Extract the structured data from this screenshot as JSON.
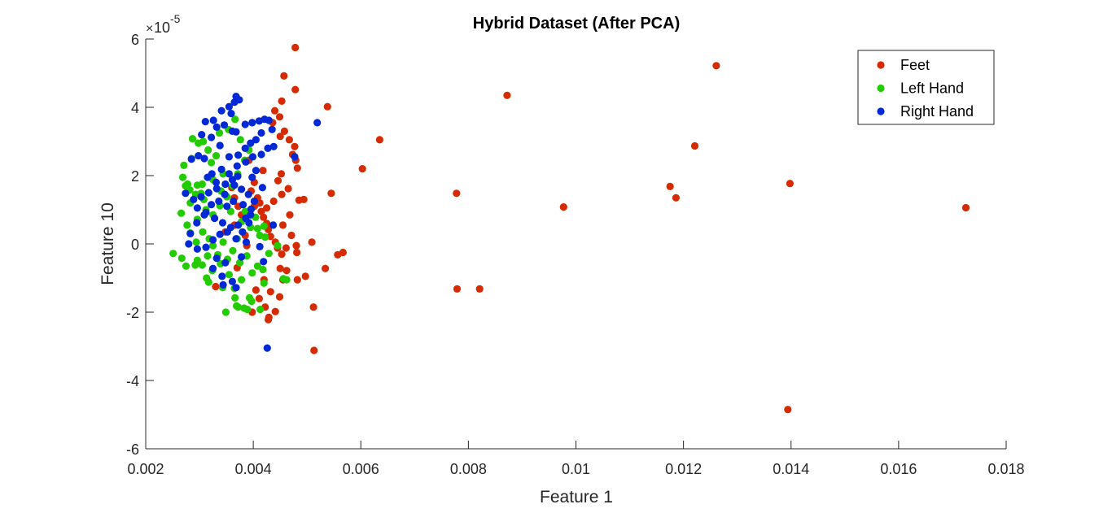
{
  "chart_data": {
    "type": "scatter",
    "title": "Hybrid Dataset (After PCA)",
    "xlabel": "Feature 1",
    "ylabel": "Feature 10",
    "y_exponent_base": "10",
    "y_exponent_power": "-5",
    "xlim": [
      0.002,
      0.018
    ],
    "ylim": [
      -6,
      6
    ],
    "x_ticks": [
      0.002,
      0.004,
      0.006,
      0.008,
      0.01,
      0.012,
      0.014,
      0.016,
      0.018
    ],
    "x_tick_labels": [
      "0.002",
      "0.004",
      "0.006",
      "0.008",
      "0.01",
      "0.012",
      "0.014",
      "0.016",
      "0.018"
    ],
    "y_ticks": [
      -6,
      -4,
      -2,
      0,
      2,
      4,
      6
    ],
    "y_tick_labels": [
      "-6",
      "-4",
      "-2",
      "0",
      "2",
      "4",
      "6"
    ],
    "grid": false,
    "legend_position": "top-right",
    "series": [
      {
        "name": "Feet",
        "color": "#d62b00",
        "points": [
          [
            0.00478,
            5.75
          ],
          [
            0.00457,
            4.92
          ],
          [
            0.00478,
            4.52
          ],
          [
            0.00538,
            4.02
          ],
          [
            0.00453,
            4.18
          ],
          [
            0.00449,
            3.72
          ],
          [
            0.0044,
            3.9
          ],
          [
            0.00458,
            3.3
          ],
          [
            0.00467,
            3.05
          ],
          [
            0.00436,
            3.55
          ],
          [
            0.0045,
            3.15
          ],
          [
            0.00477,
            2.85
          ],
          [
            0.00479,
            2.45
          ],
          [
            0.00473,
            2.62
          ],
          [
            0.00482,
            2.22
          ],
          [
            0.00452,
            2.05
          ],
          [
            0.00446,
            1.85
          ],
          [
            0.00465,
            1.62
          ],
          [
            0.00453,
            1.45
          ],
          [
            0.00438,
            1.25
          ],
          [
            0.00425,
            1.05
          ],
          [
            0.00415,
            0.95
          ],
          [
            0.00408,
            1.35
          ],
          [
            0.00396,
            1.55
          ],
          [
            0.00402,
            1.1
          ],
          [
            0.00412,
            1.2
          ],
          [
            0.00419,
            0.78
          ],
          [
            0.00425,
            0.6
          ],
          [
            0.00428,
            0.42
          ],
          [
            0.00432,
            0.22
          ],
          [
            0.00441,
            0.05
          ],
          [
            0.00445,
            -0.12
          ],
          [
            0.00453,
            -0.3
          ],
          [
            0.00461,
            -0.12
          ],
          [
            0.00471,
            0.25
          ],
          [
            0.00455,
            0.55
          ],
          [
            0.00468,
            0.85
          ],
          [
            0.00485,
            1.28
          ],
          [
            0.00494,
            1.3
          ],
          [
            0.00545,
            1.48
          ],
          [
            0.00509,
            0.05
          ],
          [
            0.0048,
            -0.05
          ],
          [
            0.00481,
            -0.25
          ],
          [
            0.00497,
            -0.95
          ],
          [
            0.00534,
            -0.72
          ],
          [
            0.00557,
            -0.32
          ],
          [
            0.00567,
            -0.25
          ],
          [
            0.0045,
            -0.72
          ],
          [
            0.00455,
            -1.05
          ],
          [
            0.00449,
            -1.55
          ],
          [
            0.00441,
            -1.98
          ],
          [
            0.00422,
            -1.85
          ],
          [
            0.00429,
            -2.15
          ],
          [
            0.00428,
            -2.22
          ],
          [
            0.00432,
            -1.4
          ],
          [
            0.00411,
            -1.6
          ],
          [
            0.00405,
            -1.35
          ],
          [
            0.00398,
            -2.0
          ],
          [
            0.0042,
            -1.05
          ],
          [
            0.00462,
            -0.78
          ],
          [
            0.00482,
            -1.05
          ],
          [
            0.00512,
            -1.85
          ],
          [
            0.00513,
            -3.12
          ],
          [
            0.00603,
            2.2
          ],
          [
            0.00635,
            3.05
          ],
          [
            0.00778,
            1.48
          ],
          [
            0.00779,
            -1.32
          ],
          [
            0.00821,
            -1.32
          ],
          [
            0.00872,
            4.35
          ],
          [
            0.00977,
            1.08
          ],
          [
            0.01175,
            1.68
          ],
          [
            0.01186,
            1.35
          ],
          [
            0.01221,
            2.87
          ],
          [
            0.01261,
            5.22
          ],
          [
            0.01398,
            1.77
          ],
          [
            0.01394,
            -4.85
          ],
          [
            0.01725,
            1.06
          ],
          [
            0.0036,
            1.65
          ],
          [
            0.00372,
            1.1
          ],
          [
            0.00365,
            0.55
          ],
          [
            0.0037,
            -0.7
          ],
          [
            0.00385,
            0.25
          ],
          [
            0.00392,
            2.45
          ],
          [
            0.00398,
            3.55
          ],
          [
            0.0033,
            -1.25
          ],
          [
            0.00348,
            0.35
          ],
          [
            0.00388,
            -0.05
          ],
          [
            0.00378,
            0.85
          ],
          [
            0.00402,
            1.8
          ],
          [
            0.00418,
            2.15
          ],
          [
            0.00365,
            1.35
          ]
        ]
      },
      {
        "name": "Left Hand",
        "color": "#22cc00",
        "points": [
          [
            0.00251,
            -0.28
          ],
          [
            0.00267,
            -0.42
          ],
          [
            0.00275,
            -0.65
          ],
          [
            0.00292,
            -0.62
          ],
          [
            0.00296,
            -0.48
          ],
          [
            0.00305,
            -0.62
          ],
          [
            0.00313,
            -1.0
          ],
          [
            0.00317,
            -1.12
          ],
          [
            0.00324,
            -0.78
          ],
          [
            0.00343,
            -1.28
          ],
          [
            0.00349,
            -2.0
          ],
          [
            0.00366,
            -1.58
          ],
          [
            0.00369,
            -1.82
          ],
          [
            0.00372,
            -1.85
          ],
          [
            0.00383,
            -1.88
          ],
          [
            0.00389,
            -1.92
          ],
          [
            0.00393,
            -1.58
          ],
          [
            0.00397,
            -1.68
          ],
          [
            0.00413,
            -1.92
          ],
          [
            0.00418,
            -0.75
          ],
          [
            0.0042,
            -1.15
          ],
          [
            0.00456,
            -1.02
          ],
          [
            0.00462,
            -1.05
          ],
          [
            0.00445,
            -0.05
          ],
          [
            0.00422,
            0.2
          ],
          [
            0.00408,
            0.45
          ],
          [
            0.0042,
            0.52
          ],
          [
            0.00404,
            0.78
          ],
          [
            0.00385,
            0.95
          ],
          [
            0.00378,
            0.65
          ],
          [
            0.0037,
            0.15
          ],
          [
            0.00362,
            -0.2
          ],
          [
            0.00352,
            -0.45
          ],
          [
            0.00334,
            -0.32
          ],
          [
            0.00325,
            -0.05
          ],
          [
            0.00318,
            0.15
          ],
          [
            0.00306,
            0.35
          ],
          [
            0.00294,
            0.05
          ],
          [
            0.00283,
            0.32
          ],
          [
            0.00277,
            0.55
          ],
          [
            0.00266,
            0.9
          ],
          [
            0.00283,
            1.2
          ],
          [
            0.00293,
            1.45
          ],
          [
            0.00278,
            1.75
          ],
          [
            0.00271,
            2.3
          ],
          [
            0.00285,
            2.5
          ],
          [
            0.00298,
            2.95
          ],
          [
            0.00287,
            3.08
          ],
          [
            0.00307,
            3.0
          ],
          [
            0.00316,
            2.75
          ],
          [
            0.00322,
            2.38
          ],
          [
            0.00331,
            2.58
          ],
          [
            0.00337,
            3.25
          ],
          [
            0.00354,
            3.35
          ],
          [
            0.00366,
            3.65
          ],
          [
            0.00376,
            3.05
          ],
          [
            0.00392,
            2.75
          ],
          [
            0.00384,
            2.45
          ],
          [
            0.00371,
            2.05
          ],
          [
            0.00362,
            1.7
          ],
          [
            0.00351,
            1.38
          ],
          [
            0.00338,
            1.12
          ],
          [
            0.00325,
            0.85
          ],
          [
            0.00312,
            1.0
          ],
          [
            0.00303,
            1.48
          ],
          [
            0.00296,
            1.72
          ],
          [
            0.00282,
            1.58
          ],
          [
            0.00269,
            1.95
          ],
          [
            0.00274,
            1.7
          ],
          [
            0.00305,
            1.75
          ],
          [
            0.0034,
            1.55
          ],
          [
            0.00358,
            0.95
          ],
          [
            0.00395,
            0.48
          ],
          [
            0.00412,
            0.25
          ],
          [
            0.00388,
            -0.35
          ],
          [
            0.00375,
            -0.55
          ],
          [
            0.00355,
            -0.9
          ],
          [
            0.00339,
            -0.58
          ],
          [
            0.00315,
            -0.35
          ],
          [
            0.00344,
            0.05
          ],
          [
            0.00365,
            -1.3
          ],
          [
            0.00378,
            -1.05
          ],
          [
            0.00398,
            -0.85
          ],
          [
            0.00408,
            -0.65
          ],
          [
            0.00429,
            -0.28
          ],
          [
            0.00344,
            2.05
          ],
          [
            0.00325,
            1.88
          ],
          [
            0.00308,
            1.3
          ],
          [
            0.00296,
            0.72
          ]
        ]
      },
      {
        "name": "Right Hand",
        "color": "#0028d6",
        "points": [
          [
            0.00368,
            4.32
          ],
          [
            0.00365,
            4.15
          ],
          [
            0.00374,
            4.22
          ],
          [
            0.00355,
            4.02
          ],
          [
            0.00359,
            3.82
          ],
          [
            0.00341,
            3.9
          ],
          [
            0.00326,
            3.62
          ],
          [
            0.00311,
            3.58
          ],
          [
            0.00332,
            3.42
          ],
          [
            0.00346,
            3.48
          ],
          [
            0.00361,
            3.3
          ],
          [
            0.00368,
            3.28
          ],
          [
            0.00385,
            3.5
          ],
          [
            0.00398,
            3.55
          ],
          [
            0.00411,
            3.6
          ],
          [
            0.00421,
            3.65
          ],
          [
            0.00429,
            3.62
          ],
          [
            0.00435,
            3.35
          ],
          [
            0.00415,
            3.25
          ],
          [
            0.00405,
            3.05
          ],
          [
            0.00395,
            2.95
          ],
          [
            0.00385,
            2.8
          ],
          [
            0.00372,
            2.6
          ],
          [
            0.00355,
            2.55
          ],
          [
            0.00338,
            2.88
          ],
          [
            0.00322,
            3.12
          ],
          [
            0.00304,
            3.2
          ],
          [
            0.00298,
            2.58
          ],
          [
            0.00285,
            2.48
          ],
          [
            0.00309,
            2.5
          ],
          [
            0.00323,
            2.05
          ],
          [
            0.00341,
            2.18
          ],
          [
            0.00355,
            2.05
          ],
          [
            0.0037,
            2.28
          ],
          [
            0.00386,
            2.4
          ],
          [
            0.00399,
            2.55
          ],
          [
            0.00415,
            2.62
          ],
          [
            0.00427,
            2.8
          ],
          [
            0.00438,
            2.85
          ],
          [
            0.00477,
            2.55
          ],
          [
            0.00519,
            3.55
          ],
          [
            0.00371,
            1.98
          ],
          [
            0.00361,
            1.88
          ],
          [
            0.00348,
            1.75
          ],
          [
            0.00332,
            1.62
          ],
          [
            0.00317,
            1.5
          ],
          [
            0.00303,
            1.38
          ],
          [
            0.00289,
            1.3
          ],
          [
            0.00274,
            1.48
          ],
          [
            0.00296,
            1.05
          ],
          [
            0.00312,
            0.92
          ],
          [
            0.00328,
            0.75
          ],
          [
            0.00343,
            0.62
          ],
          [
            0.00358,
            0.48
          ],
          [
            0.00372,
            0.55
          ],
          [
            0.00386,
            0.75
          ],
          [
            0.00396,
            1.02
          ],
          [
            0.00402,
            1.25
          ],
          [
            0.00391,
            1.45
          ],
          [
            0.00378,
            1.6
          ],
          [
            0.00365,
            1.72
          ],
          [
            0.00351,
            1.1
          ],
          [
            0.00336,
            1.25
          ],
          [
            0.00322,
            1.15
          ],
          [
            0.00309,
            0.85
          ],
          [
            0.00295,
            0.62
          ],
          [
            0.00283,
            0.3
          ],
          [
            0.0028,
            0.0
          ],
          [
            0.00296,
            -0.15
          ],
          [
            0.00312,
            -0.1
          ],
          [
            0.00325,
            0.12
          ],
          [
            0.00338,
            0.28
          ],
          [
            0.00352,
            0.35
          ],
          [
            0.00368,
            0.15
          ],
          [
            0.0038,
            0.35
          ],
          [
            0.00392,
            0.62
          ],
          [
            0.00395,
            0.85
          ],
          [
            0.00381,
            1.15
          ],
          [
            0.00363,
            1.25
          ],
          [
            0.00347,
            1.45
          ],
          [
            0.00331,
            1.8
          ],
          [
            0.00315,
            1.95
          ],
          [
            0.00332,
            -0.42
          ],
          [
            0.00348,
            -0.55
          ],
          [
            0.00342,
            -0.95
          ],
          [
            0.00325,
            -0.72
          ],
          [
            0.00361,
            -1.1
          ],
          [
            0.00368,
            -1.28
          ],
          [
            0.00344,
            -1.2
          ],
          [
            0.00378,
            -0.38
          ],
          [
            0.00387,
            0.05
          ],
          [
            0.00412,
            -0.08
          ],
          [
            0.00419,
            -0.52
          ],
          [
            0.00437,
            0.55
          ],
          [
            0.00426,
            -3.05
          ],
          [
            0.00417,
            1.65
          ],
          [
            0.00398,
            1.95
          ],
          [
            0.00405,
            2.15
          ]
        ]
      }
    ]
  }
}
